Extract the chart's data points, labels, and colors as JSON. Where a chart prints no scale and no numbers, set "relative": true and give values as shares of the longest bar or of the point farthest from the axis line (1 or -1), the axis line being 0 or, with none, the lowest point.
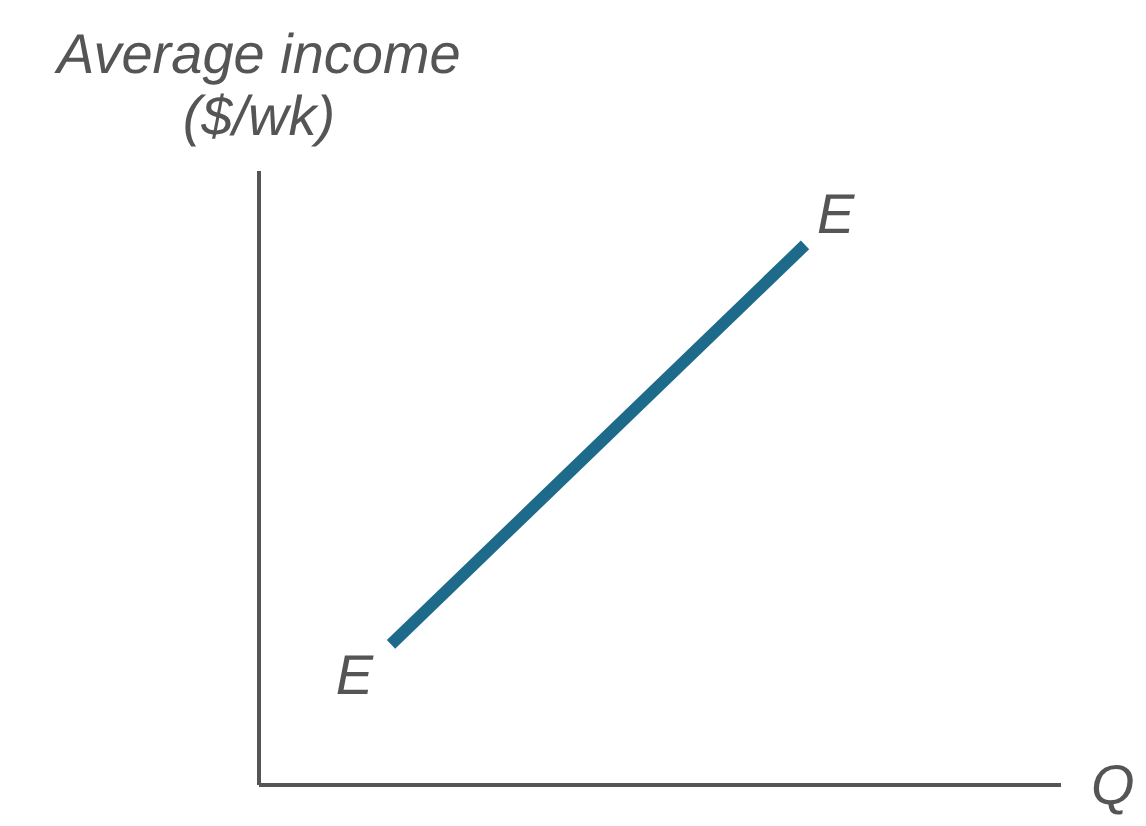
{
  "chart_data": {
    "type": "line",
    "ylabel": "Average income ($/wk)",
    "xlabel": "Q",
    "categories": [
      null,
      null
    ],
    "relative": true,
    "series": [
      {
        "color": "#1d6a8a",
        "values": [
          0.26,
          1
        ]
      }
    ],
    "annotations": [
      "E",
      "E"
    ],
    "marker": "none",
    "line_style": "solid",
    "tick_labels": false
  }
}
